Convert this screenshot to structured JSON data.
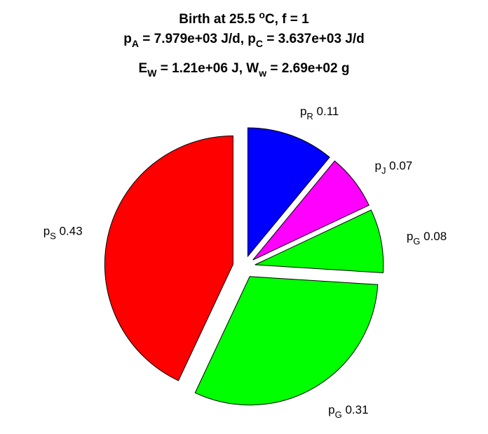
{
  "chart_data": {
    "type": "pie",
    "title": {
      "line1": {
        "a": "Birth at 25.5 ",
        "sup": "o",
        "b": "C, f = 1"
      },
      "line2": {
        "p1": "p",
        "s1": "A",
        "m1": " = 7.979e+03 J/d, ",
        "p2": "p",
        "s2": "C",
        "m2": " = 3.637e+03 J/d"
      },
      "line3": {
        "p1": "E",
        "s1": "W",
        "m1": " = 1.21e+06 J, ",
        "p2": "W",
        "s2": "w",
        "m2": " = 2.69e+02 g"
      }
    },
    "slices": [
      {
        "symbol": "p",
        "sub": "R",
        "value_label": "0.11",
        "value": 0.11,
        "color": "#0000ff"
      },
      {
        "symbol": "p",
        "sub": "J",
        "value_label": "0.07",
        "value": 0.07,
        "color": "#ff00ff"
      },
      {
        "symbol": "p",
        "sub": "G",
        "value_label": "0.08",
        "value": 0.08,
        "color": "#00ff00"
      },
      {
        "symbol": "p",
        "sub": "G",
        "value_label": "0.31",
        "value": 0.31,
        "color": "#00ff00"
      },
      {
        "symbol": "p",
        "sub": "S",
        "value_label": "0.43",
        "value": 0.43,
        "color": "#ff0000"
      }
    ]
  }
}
